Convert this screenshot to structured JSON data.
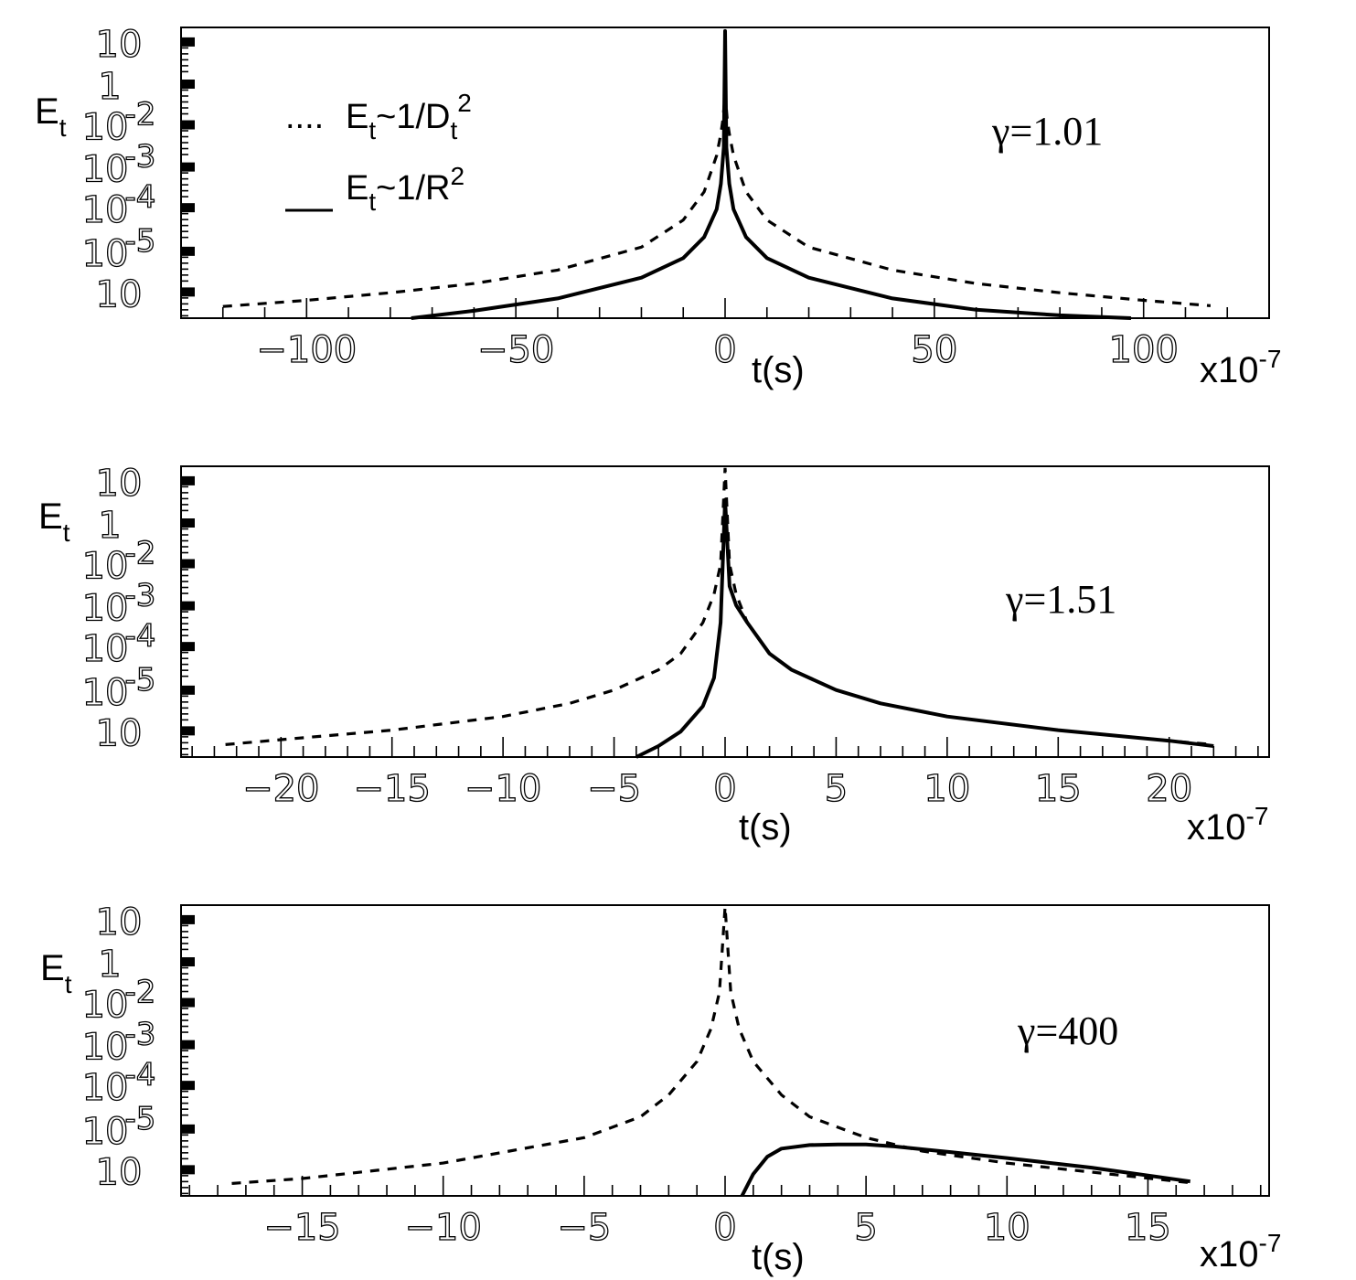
{
  "chart_data": [
    {
      "type": "line",
      "annotation": "γ=1.01",
      "xlabel": "t(s)",
      "x_multiplier": "x10-7",
      "ylabel": "Et",
      "yscale": "log",
      "xlim": [
        -130,
        130
      ],
      "xticks": [
        -100,
        -50,
        0,
        50,
        100
      ],
      "ylim": [
        1e-07,
        10
      ],
      "ytick_labels": [
        "10",
        "1",
        "10-2",
        "10-3",
        "10-4",
        "10-5",
        "10"
      ],
      "legend": {
        "placement": "top-left",
        "entries": [
          {
            "marker": "....",
            "label": "Et~1/Dt2"
          },
          {
            "marker": "__",
            "label": "Et~1/R2"
          }
        ]
      },
      "series": [
        {
          "style": "dashed",
          "x": [
            -120,
            -100,
            -80,
            -60,
            -40,
            -20,
            -10,
            -5,
            -2,
            -1,
            -0.5,
            0,
            0.5,
            1,
            2,
            5,
            10,
            20,
            40,
            60,
            80,
            100,
            116
          ],
          "y": [
            2.1e-07,
            3.1e-07,
            5e-07,
            9e-07,
            2.1e-06,
            9e-06,
            5e-05,
            0.0003,
            0.003,
            0.012,
            0.03,
            0.15,
            0.03,
            0.012,
            0.003,
            0.0003,
            5e-05,
            9e-06,
            2.1e-06,
            9e-07,
            5e-07,
            3.1e-07,
            2.2e-07
          ]
        },
        {
          "style": "solid",
          "x": [
            -75,
            -60,
            -40,
            -20,
            -10,
            -5,
            -2,
            -1,
            -0.3,
            0,
            0.3,
            1,
            2,
            5,
            10,
            20,
            40,
            60,
            80,
            97
          ],
          "y": [
            1e-07,
            1.6e-07,
            3.5e-07,
            1.3e-06,
            4.5e-06,
            1.7e-05,
            0.0001,
            0.0005,
            0.005,
            8,
            0.005,
            0.0005,
            0.0001,
            1.7e-05,
            4.5e-06,
            1.3e-06,
            3.5e-07,
            1.7e-07,
            1.2e-07,
            1e-07
          ]
        }
      ]
    },
    {
      "type": "line",
      "annotation": "γ=1.51",
      "xlabel": "t(s)",
      "x_multiplier": "x10-7",
      "ylabel": "Et",
      "yscale": "log",
      "xlim": [
        -24.5,
        24.5
      ],
      "xticks": [
        -20,
        -15,
        -10,
        -5,
        0,
        5,
        10,
        15,
        20
      ],
      "ylim": [
        1e-07,
        10
      ],
      "ytick_labels": [
        "10",
        "1",
        "10-2",
        "10-3",
        "10-4",
        "10-5",
        "10"
      ],
      "series": [
        {
          "style": "dashed",
          "x": [
            -22.5,
            -20,
            -15,
            -10,
            -7,
            -5,
            -3,
            -2,
            -1,
            -0.5,
            -0.2,
            0,
            0.2,
            0.5,
            1,
            2,
            3,
            5,
            7,
            10,
            15,
            20,
            22
          ],
          "y": [
            2.2e-07,
            3e-07,
            5.5e-07,
            1.3e-06,
            3e-06,
            7e-06,
            2.5e-05,
            7e-05,
            0.0005,
            0.003,
            0.02,
            9,
            0.02,
            0.003,
            0.0005,
            7e-05,
            2.5e-05,
            7e-06,
            3e-06,
            1.3e-06,
            5.5e-07,
            2.8e-07,
            2.2e-07
          ]
        },
        {
          "style": "solid",
          "x": [
            -4,
            -3,
            -2,
            -1,
            -0.5,
            -0.2,
            0,
            0.2,
            0.5,
            1,
            2,
            3,
            5,
            7,
            10,
            15,
            20,
            22
          ],
          "y": [
            1e-07,
            2e-07,
            5e-07,
            2.5e-06,
            1.5e-05,
            0.0005,
            1.2,
            0.005,
            0.0015,
            0.0005,
            7e-05,
            2.5e-05,
            7e-06,
            3e-06,
            1.3e-06,
            5.5e-07,
            2.8e-07,
            2e-07
          ]
        }
      ]
    },
    {
      "type": "line",
      "annotation": "γ=400",
      "xlabel": "t(s)",
      "x_multiplier": "x10-7",
      "ylabel": "Et",
      "yscale": "log",
      "xlim": [
        -19.3,
        19.3
      ],
      "xticks": [
        -15,
        -10,
        -5,
        0,
        5,
        10,
        15
      ],
      "ylim": [
        1e-07,
        10
      ],
      "ytick_labels": [
        "10",
        "1",
        "10-2",
        "10-3",
        "10-4",
        "10-5",
        "10"
      ],
      "series": [
        {
          "style": "dashed",
          "x": [
            -17.5,
            -15,
            -10,
            -5,
            -3,
            -2,
            -1,
            -0.5,
            -0.2,
            0,
            0.2,
            0.5,
            1,
            2,
            3,
            5,
            7,
            10,
            13,
            16.5
          ],
          "y": [
            2.2e-07,
            3e-07,
            8e-07,
            4e-06,
            1.5e-05,
            6e-05,
            0.0005,
            0.004,
            0.04,
            9,
            0.04,
            0.004,
            0.0005,
            6e-05,
            1.5e-05,
            4e-06,
            1.7e-06,
            8e-07,
            4.5e-07,
            2.3e-07
          ]
        },
        {
          "style": "solid",
          "x": [
            0.6,
            1,
            1.5,
            2,
            3,
            4,
            5,
            6,
            8,
            10,
            13,
            16.5
          ],
          "y": [
            1e-07,
            4e-07,
            1.2e-06,
            2e-06,
            2.5e-06,
            2.6e-06,
            2.6e-06,
            2.3e-06,
            1.6e-06,
            1.1e-06,
            6e-07,
            2.5e-07
          ]
        }
      ]
    }
  ]
}
